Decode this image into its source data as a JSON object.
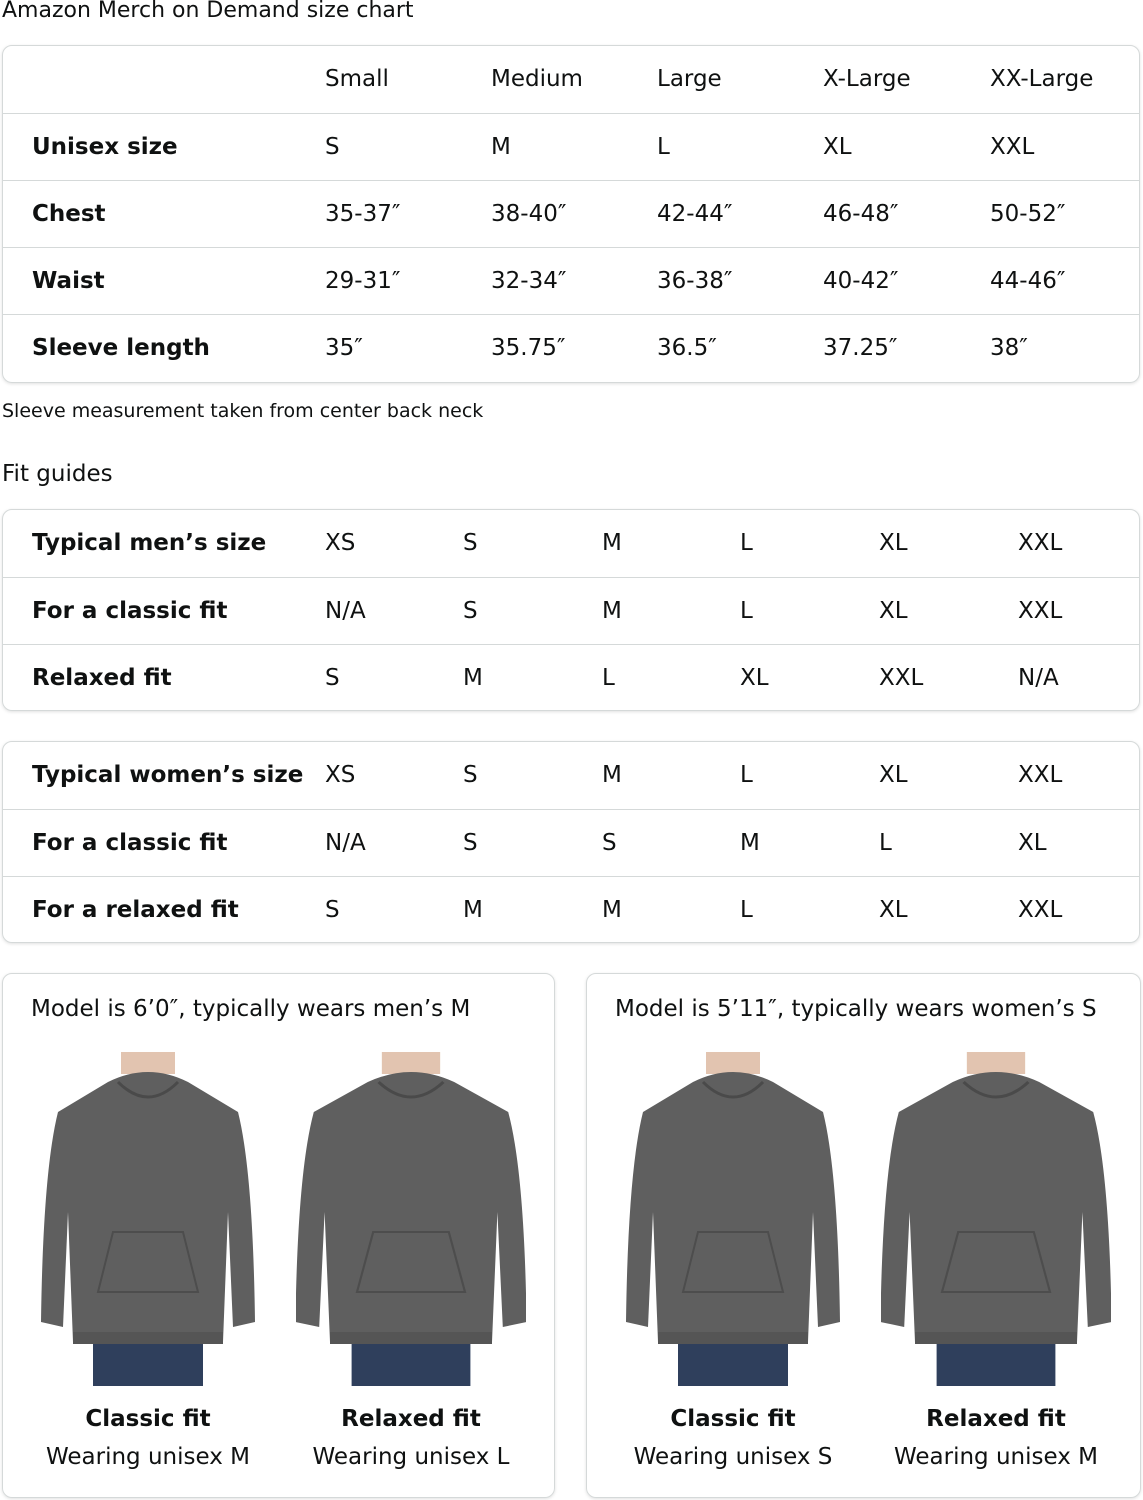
{
  "title": "Amazon Merch on Demand size chart",
  "size_table": {
    "headers": [
      "",
      "Small",
      "Medium",
      "Large",
      "X-Large",
      "XX-Large"
    ],
    "rows": [
      {
        "label": "Unisex size",
        "values": [
          "S",
          "M",
          "L",
          "XL",
          "XXL"
        ]
      },
      {
        "label": "Chest",
        "values": [
          "35-37″",
          "38-40″",
          "42-44″",
          "46-48″",
          "50-52″"
        ]
      },
      {
        "label": "Waist",
        "values": [
          "29-31″",
          "32-34″",
          "36-38″",
          "40-42″",
          "44-46″"
        ]
      },
      {
        "label": "Sleeve length",
        "values": [
          "35″",
          "35.75″",
          "36.5″",
          "37.25″",
          "38″"
        ]
      }
    ]
  },
  "sleeve_note": "Sleeve measurement taken from center back neck",
  "fit_guides_title": "Fit guides",
  "mens_table": {
    "rows": [
      {
        "label": "Typical men’s size",
        "values": [
          "XS",
          "S",
          "M",
          "L",
          "XL",
          "XXL"
        ]
      },
      {
        "label": "For a classic fit",
        "values": [
          "N/A",
          "S",
          "M",
          "L",
          "XL",
          "XXL"
        ]
      },
      {
        "label": "Relaxed fit",
        "values": [
          "S",
          "M",
          "L",
          "XL",
          "XXL",
          "N/A"
        ]
      }
    ]
  },
  "womens_table": {
    "rows": [
      {
        "label": "Typical women’s size",
        "values": [
          "XS",
          "S",
          "M",
          "L",
          "XL",
          "XXL"
        ]
      },
      {
        "label": "For a classic fit",
        "values": [
          "N/A",
          "S",
          "S",
          "M",
          "L",
          "XL"
        ]
      },
      {
        "label": "For a relaxed fit",
        "values": [
          "S",
          "M",
          "M",
          "L",
          "XL",
          "XXL"
        ]
      }
    ]
  },
  "models": [
    {
      "caption": "Model is 6’0″, typically wears men’s M",
      "figures": [
        {
          "fit": "Classic fit",
          "wearing": "Wearing unisex M"
        },
        {
          "fit": "Relaxed fit",
          "wearing": "Wearing unisex L"
        }
      ]
    },
    {
      "caption": "Model is 5’11″, typically wears women’s S",
      "figures": [
        {
          "fit": "Classic fit",
          "wearing": "Wearing unisex S"
        },
        {
          "fit": "Relaxed fit",
          "wearing": "Wearing unisex M"
        }
      ]
    }
  ],
  "colors": {
    "border": "#d5d9d9",
    "hoodie": "#5f5f5f",
    "jeans": "#2f3f5c"
  }
}
